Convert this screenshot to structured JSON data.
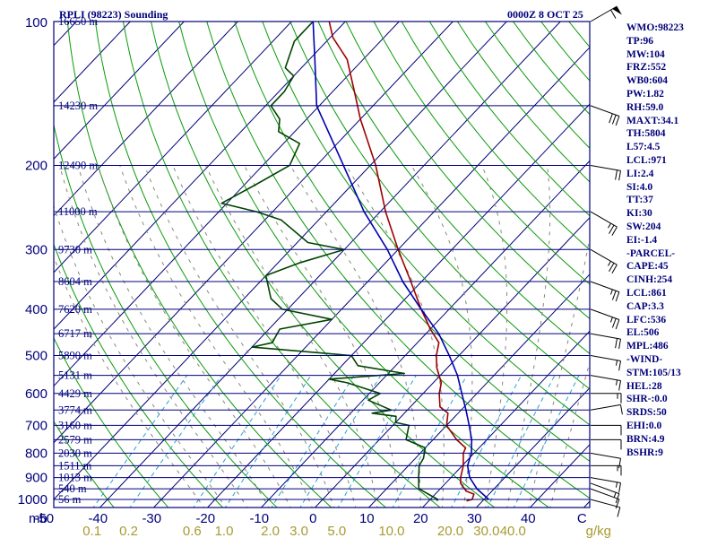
{
  "station_label": "RPLI (98223) Sounding",
  "datetime_label": "0000Z  8 OCT 25",
  "index_items": [
    "WMO:98223",
    "TP:96",
    "MW:104",
    "FRZ:552",
    "WB0:604",
    "PW:1.82",
    "RH:59.0",
    "MAXT:34.1",
    "TH:5804",
    "L57:4.5",
    "LCL:971",
    "LI:2.4",
    "SI:4.0",
    "TT:37",
    "KI:30",
    "SW:204",
    "EI:-1.4",
    "-PARCEL-",
    "CAPE:45",
    "CINH:254",
    "LCL:861",
    "CAP:3.3",
    "LFC:536",
    "EL:506",
    "MPL:486",
    "-WIND-",
    "STM:105/13",
    "HEL:28",
    "SHR-:0.0",
    "SRDS:50",
    "EHI:0.0",
    "BRN:4.9",
    "BSHR:9"
  ],
  "colors": {
    "frame": "#00007a",
    "isobar": "#00007a",
    "isotherm": "#00007a",
    "dry_adiabat": "#0a9a0a",
    "moist_adiabat": "#88887a",
    "mixing_ratio": "#2aa0d8",
    "temperature": "#a00000",
    "dewpoint": "#004400",
    "parcel": "#0000b0",
    "label": "#00007a",
    "mixing_ratio_label": "#a89a30",
    "wind_barb": "#000000"
  },
  "chart_data": {
    "type": "skew-t",
    "title": "RPLI (98223) Sounding",
    "xlabel": "°C",
    "ylabel": "mb",
    "ylim": [
      1050,
      100
    ],
    "xlim": [
      -50,
      50
    ],
    "pressure_levels": [
      100,
      200,
      300,
      400,
      500,
      600,
      700,
      800,
      900,
      1000
    ],
    "pressure_tick_labels": [
      "100",
      "200",
      "300",
      "400",
      "500",
      "600",
      "700",
      "800",
      "900",
      "1000"
    ],
    "pressure_axis_unit": "mb",
    "temperature_tick_values": [
      -50,
      -40,
      -30,
      -20,
      -10,
      0,
      10,
      20,
      30,
      40,
      50
    ],
    "temperature_tick_labels": [
      "-50",
      "-40",
      "-30",
      "-20",
      "-10",
      "0",
      "10",
      "20",
      "30",
      "40",
      "C"
    ],
    "mixing_ratio_values": [
      0.1,
      0.2,
      0.6,
      1.0,
      2.0,
      3.0,
      5.0,
      10.0,
      20.0,
      30.0,
      40.0
    ],
    "mixing_ratio_labels": [
      "0.1",
      "0.2",
      "0.6",
      "1.0",
      "2.0",
      "3.0",
      "5.0",
      "10.0",
      "20.0",
      "30.0",
      "40.0"
    ],
    "mixing_ratio_unit": "g/kg",
    "height_levels": [
      {
        "p": 100,
        "label": "16650 m"
      },
      {
        "p": 150,
        "label": "14230 m"
      },
      {
        "p": 200,
        "label": "12490 m"
      },
      {
        "p": 250,
        "label": "11000 m"
      },
      {
        "p": 300,
        "label": "9730 m"
      },
      {
        "p": 350,
        "label": "8604 m"
      },
      {
        "p": 400,
        "label": "7620 m"
      },
      {
        "p": 450,
        "label": "6717 m"
      },
      {
        "p": 500,
        "label": "5890 m"
      },
      {
        "p": 550,
        "label": "5131 m"
      },
      {
        "p": 600,
        "label": "4429 m"
      },
      {
        "p": 650,
        "label": "3774 m"
      },
      {
        "p": 700,
        "label": "3160 m"
      },
      {
        "p": 750,
        "label": "2579 m"
      },
      {
        "p": 800,
        "label": "2030 m"
      },
      {
        "p": 850,
        "label": "1511 m"
      },
      {
        "p": 900,
        "label": "1013 m"
      },
      {
        "p": 950,
        "label": "540 m"
      },
      {
        "p": 1000,
        "label": "56 m"
      }
    ],
    "series": [
      {
        "name": "Temperature",
        "points": [
          [
            1007,
            27
          ],
          [
            1000,
            27.8
          ],
          [
            975,
            27.2
          ],
          [
            960,
            25.2
          ],
          [
            925,
            22.8
          ],
          [
            900,
            21.8
          ],
          [
            850,
            20.2
          ],
          [
            800,
            18.0
          ],
          [
            780,
            17.5
          ],
          [
            750,
            14.4
          ],
          [
            700,
            10.0
          ],
          [
            660,
            8.1
          ],
          [
            640,
            5.5
          ],
          [
            600,
            3.0
          ],
          [
            570,
            1.5
          ],
          [
            530,
            -2.0
          ],
          [
            500,
            -4.2
          ],
          [
            470,
            -6.0
          ],
          [
            440,
            -10.0
          ],
          [
            400,
            -15.2
          ],
          [
            350,
            -22.0
          ],
          [
            300,
            -30.0
          ],
          [
            250,
            -39.0
          ],
          [
            200,
            -49.0
          ],
          [
            160,
            -60.0
          ],
          [
            140,
            -66.0
          ],
          [
            120,
            -73.0
          ],
          [
            108,
            -79.5
          ],
          [
            100,
            -83.0
          ]
        ]
      },
      {
        "name": "Dewpoint",
        "points": [
          [
            1007,
            21.5
          ],
          [
            1000,
            21.4
          ],
          [
            950,
            16.0
          ],
          [
            900,
            14.0
          ],
          [
            850,
            12.0
          ],
          [
            820,
            11.5
          ],
          [
            780,
            10.0
          ],
          [
            750,
            5.0
          ],
          [
            700,
            3.0
          ],
          [
            690,
            0.0
          ],
          [
            670,
            -1.0
          ],
          [
            660,
            -6.0
          ],
          [
            650,
            -3.0
          ],
          [
            620,
            -9.0
          ],
          [
            600,
            -8.0
          ],
          [
            570,
            -16.0
          ],
          [
            560,
            -20.0
          ],
          [
            545,
            -7.0
          ],
          [
            525,
            -17.0
          ],
          [
            500,
            -20.0
          ],
          [
            480,
            -40.0
          ],
          [
            470,
            -37.0
          ],
          [
            440,
            -38.0
          ],
          [
            420,
            -30.0
          ],
          [
            400,
            -41.0
          ],
          [
            380,
            -45.0
          ],
          [
            340,
            -50.0
          ],
          [
            320,
            -46.0
          ],
          [
            300,
            -40.0
          ],
          [
            290,
            -48.0
          ],
          [
            260,
            -57.0
          ],
          [
            250,
            -63.0
          ],
          [
            240,
            -71.0
          ],
          [
            220,
            -68.0
          ],
          [
            200,
            -65.0
          ],
          [
            180,
            -67.0
          ],
          [
            170,
            -73.0
          ],
          [
            160,
            -75.0
          ],
          [
            150,
            -79.0
          ],
          [
            140,
            -79.0
          ],
          [
            130,
            -80.0
          ],
          [
            125,
            -83.0
          ],
          [
            110,
            -86.0
          ],
          [
            100,
            -86.0
          ]
        ]
      },
      {
        "name": "Parcel",
        "points": [
          [
            1000,
            30.9
          ],
          [
            950,
            26.8
          ],
          [
            900,
            23.5
          ],
          [
            850,
            21.0
          ],
          [
            800,
            19.5
          ],
          [
            750,
            17.2
          ],
          [
            700,
            14.2
          ],
          [
            650,
            10.9
          ],
          [
            600,
            7.2
          ],
          [
            550,
            3.2
          ],
          [
            500,
            -1.8
          ],
          [
            450,
            -7.6
          ],
          [
            400,
            -15.2
          ],
          [
            350,
            -23.5
          ],
          [
            300,
            -32.0
          ],
          [
            250,
            -43.0
          ],
          [
            200,
            -55.0
          ],
          [
            150,
            -70.5
          ],
          [
            120,
            -79.0
          ],
          [
            100,
            -86.0
          ]
        ]
      }
    ],
    "wind_barbs": [
      {
        "p": 1000,
        "dir": 105,
        "spd": 10
      },
      {
        "p": 950,
        "dir": 110,
        "spd": 10
      },
      {
        "p": 925,
        "dir": 110,
        "spd": 15
      },
      {
        "p": 900,
        "dir": 100,
        "spd": 15
      },
      {
        "p": 850,
        "dir": 90,
        "spd": 15
      },
      {
        "p": 800,
        "dir": 100,
        "spd": 10
      },
      {
        "p": 750,
        "dir": 90,
        "spd": 10
      },
      {
        "p": 700,
        "dir": 90,
        "spd": 10
      },
      {
        "p": 650,
        "dir": 80,
        "spd": 10
      },
      {
        "p": 600,
        "dir": 90,
        "spd": 15
      },
      {
        "p": 550,
        "dir": 100,
        "spd": 15
      },
      {
        "p": 500,
        "dir": 100,
        "spd": 15
      },
      {
        "p": 450,
        "dir": 100,
        "spd": 20
      },
      {
        "p": 400,
        "dir": 110,
        "spd": 25
      },
      {
        "p": 350,
        "dir": 110,
        "spd": 25
      },
      {
        "p": 300,
        "dir": 120,
        "spd": 25
      },
      {
        "p": 250,
        "dir": 120,
        "spd": 25
      },
      {
        "p": 200,
        "dir": 100,
        "spd": 20
      },
      {
        "p": 150,
        "dir": 110,
        "spd": 30
      },
      {
        "p": 100,
        "dir": 60,
        "spd": 60
      }
    ]
  }
}
